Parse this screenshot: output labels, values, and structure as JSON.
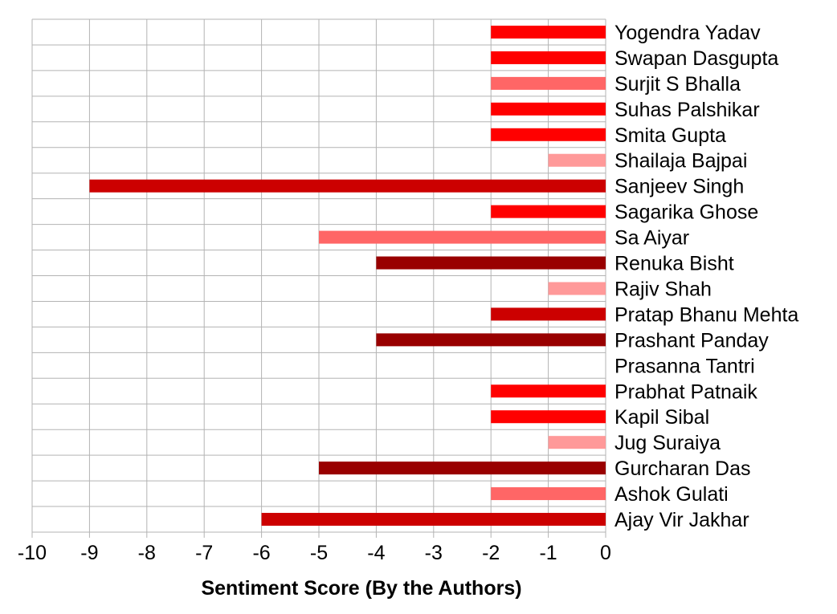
{
  "chart_data": {
    "type": "bar",
    "orientation": "horizontal",
    "categories": [
      "Yogendra Yadav",
      "Swapan Dasgupta",
      "Surjit S Bhalla",
      "Suhas Palshikar",
      "Smita Gupta",
      "Shailaja Bajpai",
      "Sanjeev Singh",
      "Sagarika Ghose",
      "Sa Aiyar",
      "Renuka Bisht",
      "Rajiv Shah",
      "Pratap Bhanu Mehta",
      "Prashant Panday",
      "Prasanna Tantri",
      "Prabhat Patnaik",
      "Kapil Sibal",
      "Jug Suraiya",
      "Gurcharan Das",
      "Ashok Gulati",
      "Ajay Vir Jakhar"
    ],
    "values": [
      -2,
      -2,
      -2,
      -2,
      -2,
      -1,
      -9,
      -2,
      -5,
      -4,
      -1,
      -2,
      -4,
      0,
      -2,
      -2,
      -1,
      -5,
      -2,
      -6
    ],
    "colors": [
      "#ff0000",
      "#ff0000",
      "#ff6666",
      "#ff0000",
      "#ff0000",
      "#ff9999",
      "#cc0000",
      "#ff0000",
      "#ff6666",
      "#990000",
      "#ff9999",
      "#cc0000",
      "#990000",
      "#ff0000",
      "#ff0000",
      "#ff0000",
      "#ff9999",
      "#990000",
      "#ff6666",
      "#cc0000"
    ],
    "title": "",
    "xlabel": "Sentiment Score (By the Authors)",
    "ylabel": "",
    "xlim": [
      -10,
      0
    ],
    "xticks": [
      "-10",
      "-9",
      "-8",
      "-7",
      "-6",
      "-5",
      "-4",
      "-3",
      "-2",
      "-1",
      "0"
    ],
    "grid": true,
    "gridColor": "#b3b3b3",
    "legend": "none"
  }
}
